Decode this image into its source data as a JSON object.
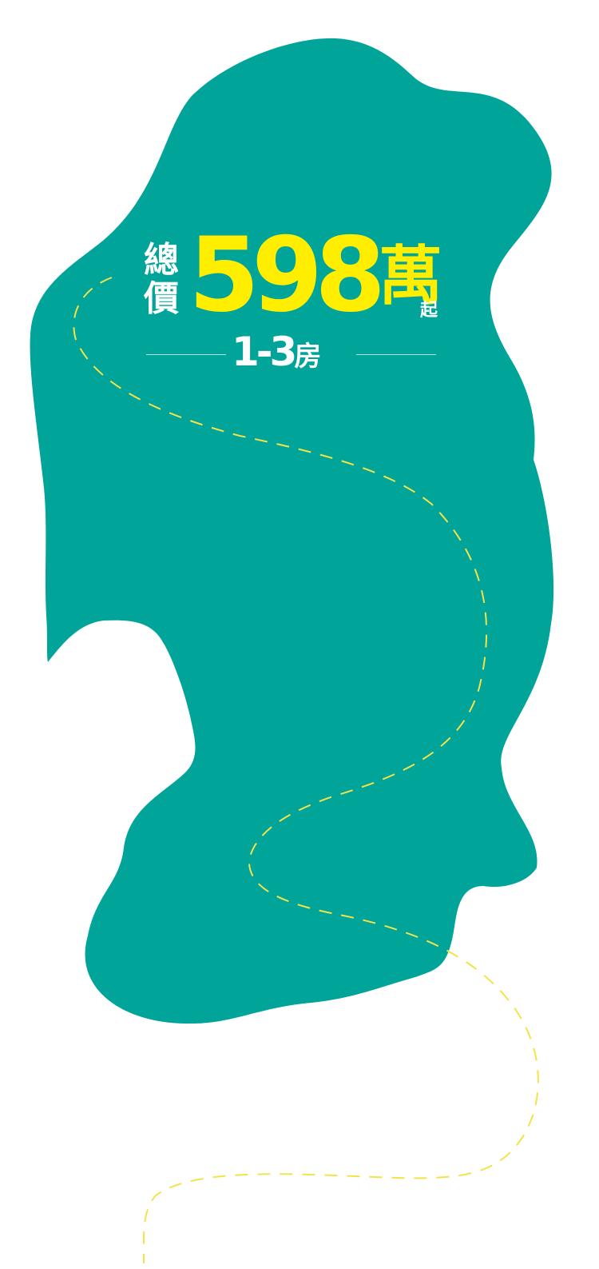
{
  "colors": {
    "background": "#ffffff",
    "blob": "#00a499",
    "accent": "#ffee00",
    "text_light": "#ffffff",
    "dash_path": "#f3e34b"
  },
  "price": {
    "label": "總價",
    "amount": "598",
    "unit": "萬",
    "suffix": "起"
  },
  "rooms": {
    "range": "1-3",
    "unit": "房"
  }
}
